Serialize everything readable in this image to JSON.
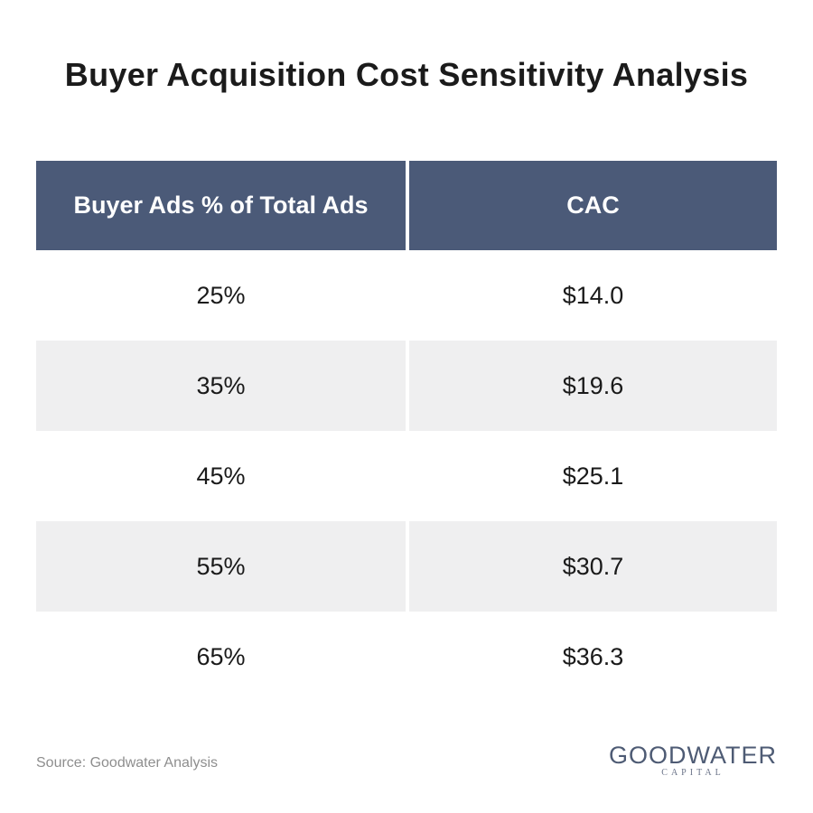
{
  "title": "Buyer Acquisition Cost Sensitivity Analysis",
  "chart_data": {
    "type": "table",
    "title": "Buyer Acquisition Cost Sensitivity Analysis",
    "columns": [
      "Buyer Ads % of Total Ads",
      "CAC"
    ],
    "rows": [
      [
        "25%",
        "$14.0"
      ],
      [
        "35%",
        "$19.6"
      ],
      [
        "45%",
        "$25.1"
      ],
      [
        "55%",
        "$30.7"
      ],
      [
        "65%",
        "$36.3"
      ]
    ],
    "header_color": "#4b5a78",
    "stripe_color": "#efeff0"
  },
  "footer": {
    "source": "Source: Goodwater Analysis",
    "logo_main": "GOODWATER",
    "logo_sub": "CAPITAL"
  }
}
